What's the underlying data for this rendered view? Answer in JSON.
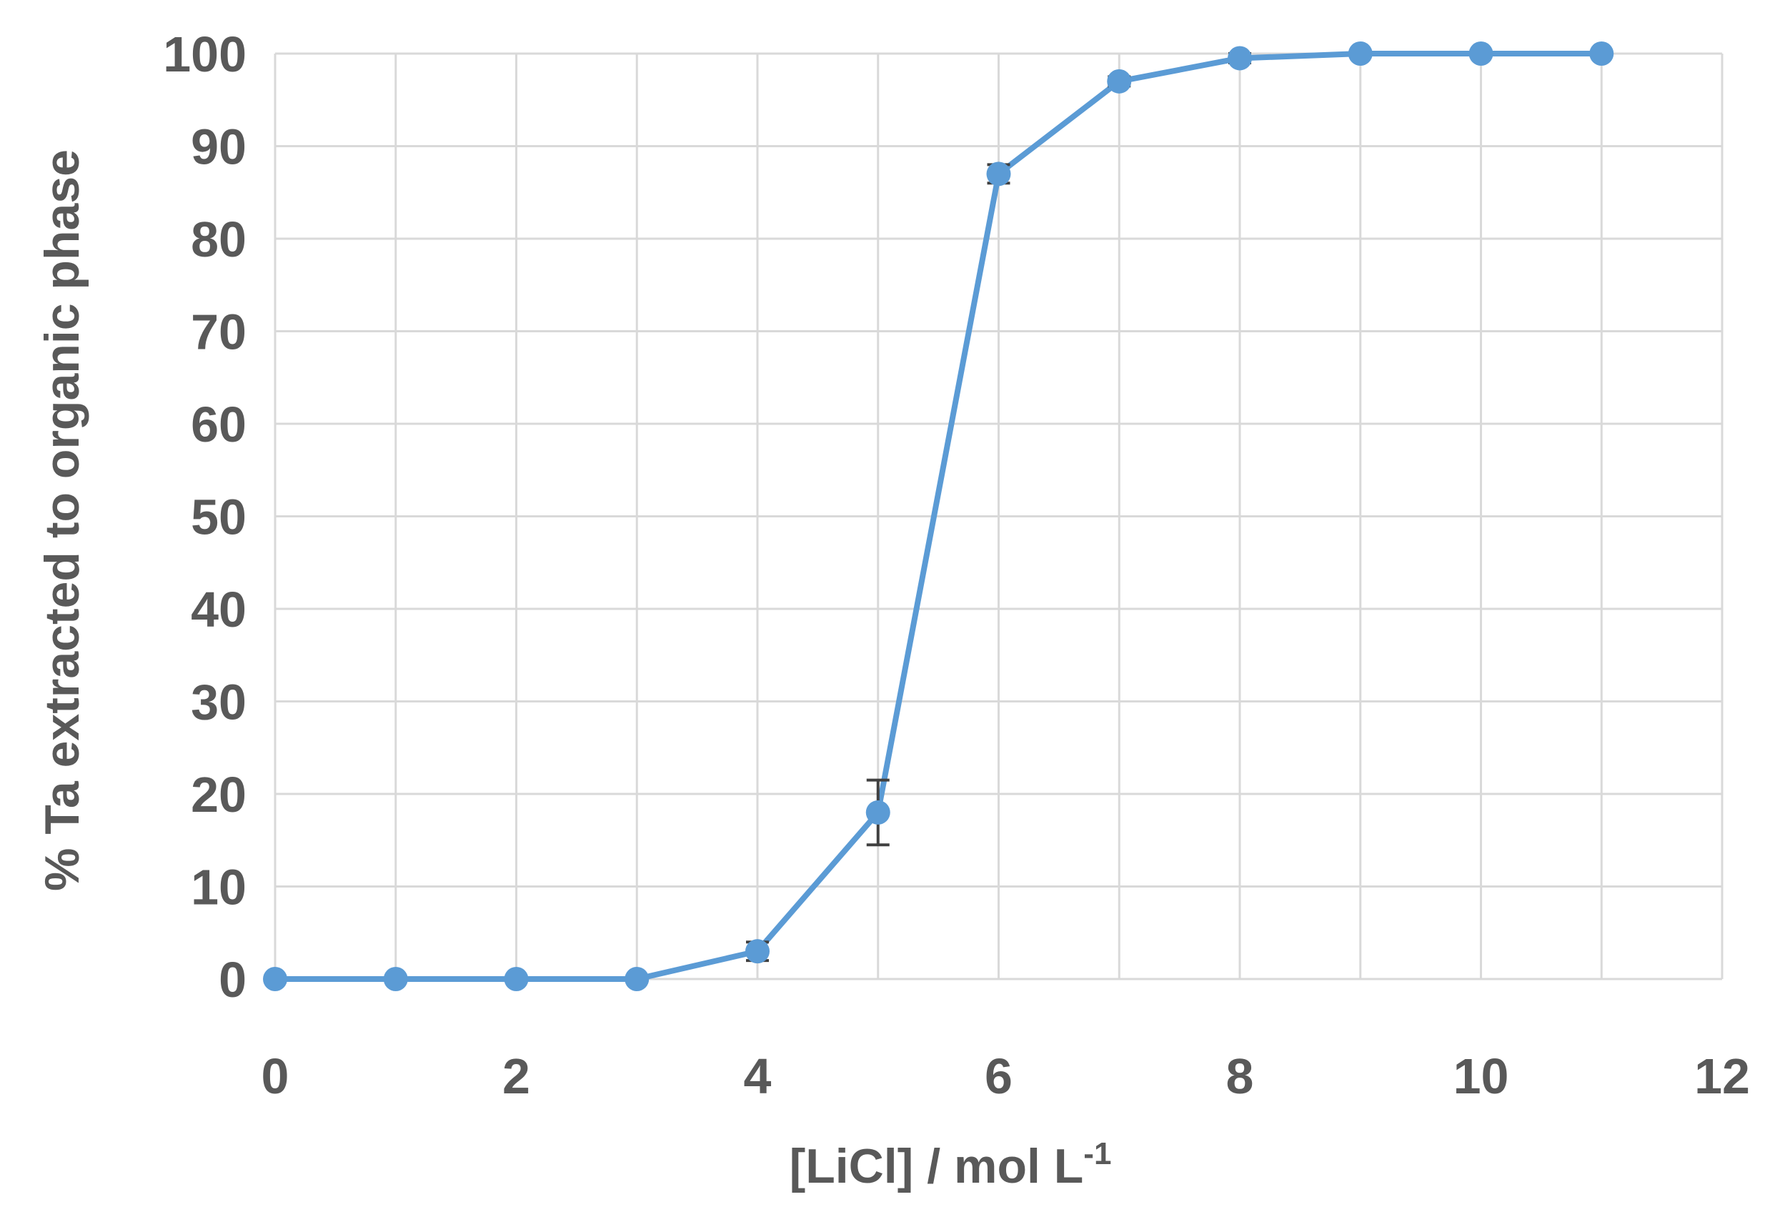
{
  "chart_data": {
    "type": "line",
    "title": "",
    "xlabel": "[LiCl] / mol L",
    "xlabel_superscript": "-1",
    "ylabel": "% Ta extracted to organic phase",
    "xlim": [
      0,
      12
    ],
    "ylim": [
      0,
      100
    ],
    "x_ticks": [
      0,
      2,
      4,
      6,
      8,
      10,
      12
    ],
    "y_ticks": [
      0,
      10,
      20,
      30,
      40,
      50,
      60,
      70,
      80,
      90,
      100
    ],
    "x_tick_labels": [
      "0",
      "2",
      "4",
      "6",
      "8",
      "10",
      "12"
    ],
    "y_tick_labels": [
      "0",
      "10",
      "20",
      "30",
      "40",
      "50",
      "60",
      "70",
      "80",
      "90",
      "100"
    ],
    "grid": true,
    "legend": "none",
    "series": [
      {
        "color": "#5b9bd5",
        "marker": "circle",
        "x": [
          0,
          1,
          2,
          3,
          4,
          5,
          6,
          7,
          8,
          9,
          10,
          11
        ],
        "y": [
          0,
          0,
          0,
          0,
          3,
          18,
          87,
          97,
          99.5,
          100,
          100,
          100
        ],
        "error": [
          0,
          0,
          0,
          0,
          1,
          3.5,
          1,
          0.5,
          0.5,
          0,
          0,
          0
        ]
      }
    ]
  }
}
